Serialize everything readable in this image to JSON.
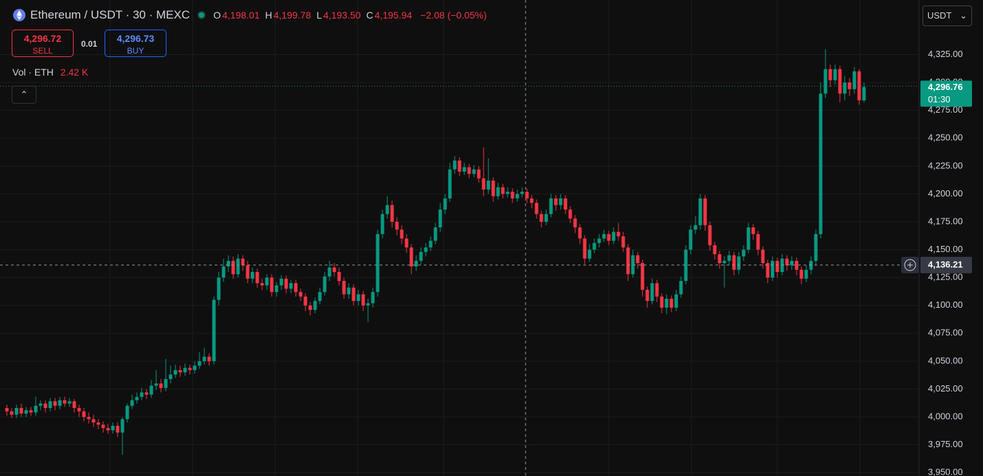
{
  "chart_data": {
    "type": "candlestick",
    "title": "Ethereum / USDT · 30 · MEXC",
    "ohlc": [
      {
        "key": "O",
        "value": {
          "value": 4198.01,
          "label": "4,198.01"
        }
      },
      {
        "key": "H",
        "value": {
          "value": 4199.78,
          "label": "4,199.78"
        }
      },
      {
        "key": "L",
        "value": {
          "value": 4193.5,
          "label": "4,193.50"
        }
      },
      {
        "key": "C",
        "value": {
          "value": 4195.94,
          "label": "4,195.94"
        }
      }
    ],
    "change": "−2.08 (−0.05%)",
    "sell": {
      "price": {
        "value": 4296.72,
        "label": "4,296.72"
      },
      "label": "SELL"
    },
    "quantity": "0.01",
    "buy": {
      "price": {
        "value": 4296.73,
        "label": "4,296.73"
      },
      "label": "BUY"
    },
    "volume_legend": {
      "label": "Vol · ETH",
      "value": "2.42 K"
    },
    "currency": "USDT",
    "up_color": "#089981",
    "down_color": "#f23645",
    "grid": true,
    "ylim": [
      3947,
      4374
    ],
    "yticks": [
      {
        "value": 3950,
        "label": "3,950.00"
      },
      {
        "value": 3975,
        "label": "3,975.00"
      },
      {
        "value": 4000,
        "label": "4,000.00"
      },
      {
        "value": 4025,
        "label": "4,025.00"
      },
      {
        "value": 4050,
        "label": "4,050.00"
      },
      {
        "value": 4075,
        "label": "4,075.00"
      },
      {
        "value": 4100,
        "label": "4,100.00"
      },
      {
        "value": 4125,
        "label": "4,125.00"
      },
      {
        "value": 4150,
        "label": "4,150.00"
      },
      {
        "value": 4175,
        "label": "4,175.00"
      },
      {
        "value": 4200,
        "label": "4,200.00"
      },
      {
        "value": 4225,
        "label": "4,225.00"
      },
      {
        "value": 4250,
        "label": "4,250.00"
      },
      {
        "value": 4275,
        "label": "4,275.00"
      },
      {
        "value": 4300,
        "label": "4,300.00"
      },
      {
        "value": 4325,
        "label": "4,325.00"
      }
    ],
    "last_price": {
      "value": 4296.76,
      "label": "4,296.76"
    },
    "countdown": "01:30",
    "crosshair": {
      "value": 4136.21,
      "label": "4,136.21"
    },
    "candles": [
      [
        4008,
        4011,
        4001,
        4005
      ],
      [
        4005,
        4008,
        3999,
        4002
      ],
      [
        4002,
        4011,
        3999,
        4008
      ],
      [
        4008,
        4012,
        4000,
        4003
      ],
      [
        4003,
        4009,
        4000,
        4006
      ],
      [
        4006,
        4009,
        4001,
        4004
      ],
      [
        4004,
        4018,
        4001,
        4010
      ],
      [
        4010,
        4015,
        4006,
        4012
      ],
      [
        4012,
        4015,
        4004,
        4008
      ],
      [
        4008,
        4017,
        4005,
        4014
      ],
      [
        4014,
        4017,
        4006,
        4010
      ],
      [
        4010,
        4018,
        4007,
        4015
      ],
      [
        4015,
        4018,
        4009,
        4012
      ],
      [
        4012,
        4017,
        4009,
        4014
      ],
      [
        4014,
        4016,
        4004,
        4008
      ],
      [
        4008,
        4011,
        4000,
        4005
      ],
      [
        4005,
        4008,
        3996,
        4000
      ],
      [
        4000,
        4004,
        3994,
        3998
      ],
      [
        3998,
        4002,
        3991,
        3995
      ],
      [
        3995,
        3998,
        3989,
        3993
      ],
      [
        3993,
        3996,
        3986,
        3990
      ],
      [
        3990,
        3994,
        3985,
        3988
      ],
      [
        3988,
        3995,
        3985,
        3992
      ],
      [
        3992,
        3995,
        3982,
        3986
      ],
      [
        3986,
        4000,
        3966,
        3998
      ],
      [
        3998,
        4012,
        3995,
        4010
      ],
      [
        4010,
        4020,
        4007,
        4015
      ],
      [
        4015,
        4022,
        4012,
        4018
      ],
      [
        4018,
        4026,
        4015,
        4022
      ],
      [
        4022,
        4025,
        4016,
        4020
      ],
      [
        4020,
        4033,
        4017,
        4028
      ],
      [
        4028,
        4042,
        4024,
        4030
      ],
      [
        4030,
        4034,
        4022,
        4026
      ],
      [
        4026,
        4052,
        4023,
        4034
      ],
      [
        4034,
        4046,
        4030,
        4038
      ],
      [
        4038,
        4047,
        4035,
        4042
      ],
      [
        4042,
        4046,
        4036,
        4040
      ],
      [
        4040,
        4048,
        4037,
        4044
      ],
      [
        4044,
        4047,
        4038,
        4042
      ],
      [
        4042,
        4050,
        4039,
        4046
      ],
      [
        4046,
        4058,
        4043,
        4050
      ],
      [
        4050,
        4062,
        4047,
        4054
      ],
      [
        4054,
        4057,
        4046,
        4050
      ],
      [
        4050,
        4108,
        4047,
        4105
      ],
      [
        4105,
        4130,
        4100,
        4125
      ],
      [
        4125,
        4142,
        4121,
        4135
      ],
      [
        4135,
        4145,
        4130,
        4140
      ],
      [
        4140,
        4144,
        4124,
        4128
      ],
      [
        4128,
        4146,
        4125,
        4142
      ],
      [
        4142,
        4145,
        4131,
        4136
      ],
      [
        4136,
        4140,
        4120,
        4124
      ],
      [
        4124,
        4134,
        4120,
        4130
      ],
      [
        4130,
        4133,
        4116,
        4120
      ],
      [
        4120,
        4124,
        4114,
        4118
      ],
      [
        4118,
        4128,
        4114,
        4125
      ],
      [
        4125,
        4128,
        4108,
        4112
      ],
      [
        4112,
        4121,
        4108,
        4118
      ],
      [
        4118,
        4127,
        4114,
        4124
      ],
      [
        4124,
        4127,
        4111,
        4115
      ],
      [
        4115,
        4123,
        4111,
        4120
      ],
      [
        4120,
        4123,
        4108,
        4112
      ],
      [
        4112,
        4115,
        4104,
        4108
      ],
      [
        4108,
        4111,
        4095,
        4100
      ],
      [
        4100,
        4103,
        4091,
        4096
      ],
      [
        4096,
        4107,
        4093,
        4104
      ],
      [
        4104,
        4116,
        4101,
        4112
      ],
      [
        4112,
        4130,
        4109,
        4126
      ],
      [
        4126,
        4140,
        4122,
        4134
      ],
      [
        4134,
        4138,
        4126,
        4130
      ],
      [
        4130,
        4134,
        4118,
        4122
      ],
      [
        4122,
        4125,
        4106,
        4110
      ],
      [
        4110,
        4120,
        4106,
        4116
      ],
      [
        4116,
        4119,
        4100,
        4104
      ],
      [
        4104,
        4114,
        4100,
        4110
      ],
      [
        4110,
        4113,
        4095,
        4100
      ],
      [
        4100,
        4106,
        4085,
        4102
      ],
      [
        4102,
        4116,
        4098,
        4112
      ],
      [
        4112,
        4168,
        4108,
        4164
      ],
      [
        4164,
        4186,
        4160,
        4182
      ],
      [
        4182,
        4198,
        4178,
        4190
      ],
      [
        4190,
        4194,
        4170,
        4175
      ],
      [
        4175,
        4179,
        4163,
        4168
      ],
      [
        4168,
        4172,
        4155,
        4160
      ],
      [
        4160,
        4164,
        4147,
        4152
      ],
      [
        4152,
        4155,
        4128,
        4135
      ],
      [
        4135,
        4145,
        4131,
        4140
      ],
      [
        4140,
        4152,
        4137,
        4148
      ],
      [
        4148,
        4156,
        4144,
        4152
      ],
      [
        4152,
        4162,
        4149,
        4158
      ],
      [
        4158,
        4174,
        4155,
        4170
      ],
      [
        4170,
        4192,
        4166,
        4186
      ],
      [
        4186,
        4200,
        4182,
        4196
      ],
      [
        4196,
        4228,
        4193,
        4222
      ],
      [
        4222,
        4234,
        4218,
        4230
      ],
      [
        4230,
        4233,
        4216,
        4220
      ],
      [
        4220,
        4228,
        4217,
        4224
      ],
      [
        4224,
        4227,
        4214,
        4218
      ],
      [
        4218,
        4226,
        4215,
        4222
      ],
      [
        4222,
        4225,
        4210,
        4214
      ],
      [
        4214,
        4242,
        4198,
        4204
      ],
      [
        4204,
        4232,
        4200,
        4212
      ],
      [
        4212,
        4215,
        4193,
        4198
      ],
      [
        4198,
        4210,
        4195,
        4206
      ],
      [
        4206,
        4209,
        4196,
        4200
      ],
      [
        4200,
        4206,
        4197,
        4202
      ],
      [
        4202,
        4205,
        4192,
        4196
      ],
      [
        4196,
        4204,
        4193,
        4200
      ],
      [
        4200,
        4206,
        4197,
        4202
      ],
      [
        4202,
        4205,
        4192,
        4196
      ],
      [
        4196,
        4199,
        4187,
        4192
      ],
      [
        4192,
        4195,
        4178,
        4182
      ],
      [
        4182,
        4185,
        4170,
        4175
      ],
      [
        4175,
        4186,
        4172,
        4182
      ],
      [
        4182,
        4200,
        4179,
        4196
      ],
      [
        4196,
        4199,
        4185,
        4190
      ],
      [
        4190,
        4200,
        4186,
        4196
      ],
      [
        4196,
        4199,
        4182,
        4186
      ],
      [
        4186,
        4189,
        4174,
        4178
      ],
      [
        4178,
        4181,
        4165,
        4170
      ],
      [
        4170,
        4173,
        4155,
        4160
      ],
      [
        4160,
        4163,
        4137,
        4142
      ],
      [
        4142,
        4155,
        4139,
        4150
      ],
      [
        4150,
        4160,
        4147,
        4156
      ],
      [
        4156,
        4164,
        4152,
        4160
      ],
      [
        4160,
        4168,
        4157,
        4164
      ],
      [
        4164,
        4167,
        4154,
        4158
      ],
      [
        4158,
        4170,
        4155,
        4166
      ],
      [
        4166,
        4174,
        4158,
        4162
      ],
      [
        4162,
        4166,
        4148,
        4152
      ],
      [
        4152,
        4155,
        4122,
        4128
      ],
      [
        4128,
        4150,
        4125,
        4145
      ],
      [
        4145,
        4148,
        4133,
        4138
      ],
      [
        4138,
        4141,
        4108,
        4114
      ],
      [
        4114,
        4117,
        4098,
        4104
      ],
      [
        4104,
        4124,
        4101,
        4120
      ],
      [
        4120,
        4123,
        4103,
        4108
      ],
      [
        4108,
        4111,
        4093,
        4098
      ],
      [
        4098,
        4110,
        4092,
        4106
      ],
      [
        4106,
        4109,
        4094,
        4098
      ],
      [
        4098,
        4114,
        4095,
        4110
      ],
      [
        4110,
        4126,
        4107,
        4122
      ],
      [
        4122,
        4154,
        4119,
        4150
      ],
      [
        4150,
        4172,
        4146,
        4168
      ],
      [
        4168,
        4180,
        4164,
        4172
      ],
      [
        4172,
        4200,
        4168,
        4196
      ],
      [
        4196,
        4199,
        4167,
        4172
      ],
      [
        4172,
        4175,
        4149,
        4154
      ],
      [
        4154,
        4157,
        4141,
        4146
      ],
      [
        4146,
        4149,
        4133,
        4138
      ],
      [
        4138,
        4144,
        4116,
        4140
      ],
      [
        4140,
        4149,
        4136,
        4145
      ],
      [
        4145,
        4148,
        4127,
        4132
      ],
      [
        4132,
        4148,
        4128,
        4144
      ],
      [
        4144,
        4154,
        4140,
        4150
      ],
      [
        4150,
        4174,
        4147,
        4170
      ],
      [
        4170,
        4173,
        4159,
        4164
      ],
      [
        4164,
        4167,
        4145,
        4150
      ],
      [
        4150,
        4153,
        4133,
        4138
      ],
      [
        4138,
        4141,
        4120,
        4125
      ],
      [
        4125,
        4144,
        4122,
        4140
      ],
      [
        4140,
        4143,
        4125,
        4130
      ],
      [
        4130,
        4146,
        4127,
        4142
      ],
      [
        4142,
        4145,
        4131,
        4136
      ],
      [
        4136,
        4144,
        4132,
        4140
      ],
      [
        4140,
        4143,
        4127,
        4132
      ],
      [
        4132,
        4135,
        4119,
        4124
      ],
      [
        4124,
        4136,
        4121,
        4132
      ],
      [
        4132,
        4144,
        4128,
        4140
      ],
      [
        4140,
        4168,
        4136,
        4164
      ],
      [
        4164,
        4300,
        4160,
        4290
      ],
      [
        4290,
        4330,
        4286,
        4312
      ],
      [
        4312,
        4316,
        4296,
        4302
      ],
      [
        4302,
        4316,
        4298,
        4312
      ],
      [
        4312,
        4315,
        4282,
        4290
      ],
      [
        4290,
        4306,
        4284,
        4300
      ],
      [
        4300,
        4304,
        4288,
        4294
      ],
      [
        4294,
        4314,
        4290,
        4310
      ],
      [
        4310,
        4312,
        4280,
        4284
      ],
      [
        4284,
        4300,
        4282,
        4296
      ]
    ]
  }
}
